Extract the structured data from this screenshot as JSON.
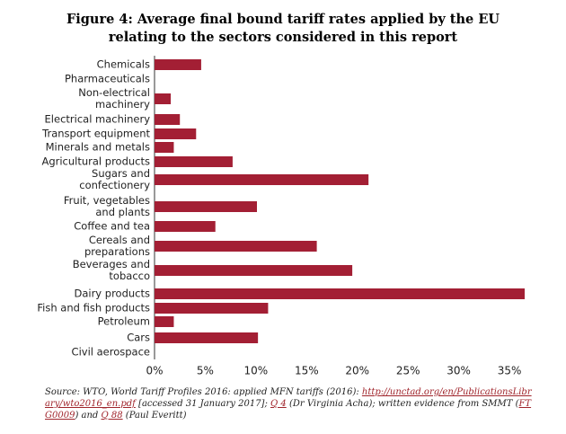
{
  "chart_data": {
    "type": "barh",
    "title": "Figure 4: Average final bound tariff rates applied by the EU relating to the sectors considered in this report",
    "categories": [
      "Chemicals",
      "Pharmaceuticals",
      "Non-electrical\nmachinery",
      "Electrical machinery",
      "Transport equipment",
      "Minerals and metals",
      "Agricultural products",
      "Sugars and\nconfectionery",
      "Fruit, vegetables\nand plants",
      "Coffee and tea",
      "Cereals and\npreparations",
      "Beverages and\ntobacco",
      "Dairy products",
      "Fish and fish products",
      "Petroleum",
      "Cars",
      "Civil aerospace"
    ],
    "values": [
      4.6,
      0,
      1.6,
      2.5,
      4.1,
      1.9,
      7.7,
      21.1,
      10.1,
      6.0,
      16.0,
      19.5,
      36.5,
      11.2,
      1.9,
      10.2,
      0
    ],
    "color": "#a31f34",
    "xlim": [
      0,
      36.5
    ],
    "xticks": [
      {
        "value": 0,
        "label": "0%"
      },
      {
        "value": 5,
        "label": "5%"
      },
      {
        "value": 10,
        "label": "10%"
      },
      {
        "value": 15,
        "label": "15%"
      },
      {
        "value": 20,
        "label": "20%"
      },
      {
        "value": 25,
        "label": "25%"
      },
      {
        "value": 30,
        "label": "30%"
      },
      {
        "value": 35,
        "label": "35%"
      }
    ],
    "source": [
      "Source: WTO, World Tariff Profiles 2016: applied MFN tariffs (2016): ",
      "http://unctad.org/en/PublicationsLibrary/wto2016_en.pdf",
      " [accessed 31 January 2017]; ",
      "Q 4",
      " (Dr Virginia Acha); written evidence from SMMT (",
      "FTG0009",
      ") and ",
      "Q 88",
      " (Paul Everitt)"
    ]
  }
}
